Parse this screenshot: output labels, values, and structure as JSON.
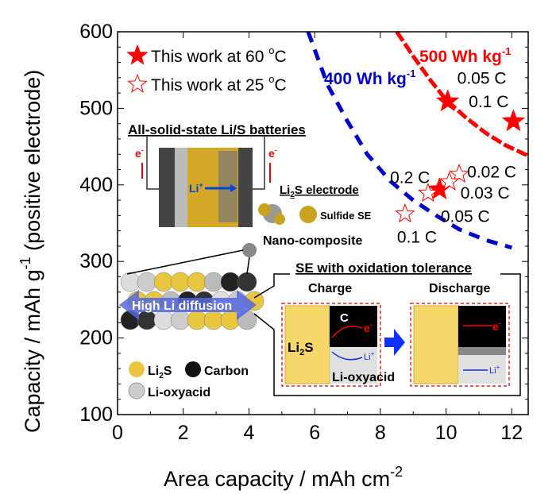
{
  "chart_data": {
    "type": "scatter",
    "xlabel": "Area capacity / mAh cm",
    "xlabel_sup": "-2",
    "ylabel": "Capacity / mAh g",
    "ylabel_sup": "-1",
    "ylabel_suffix": " (positive electrode)",
    "xlim": [
      0,
      12.5
    ],
    "ylim": [
      100,
      600
    ],
    "xticks": [
      0,
      2,
      4,
      6,
      8,
      10,
      12
    ],
    "yticks": [
      100,
      200,
      300,
      400,
      500,
      600
    ],
    "grid": false,
    "legend_placement": "top-left",
    "colors": {
      "star": "#ff0000",
      "line400": "#0000cc",
      "line500": "#ff0000"
    },
    "series": [
      {
        "name": "This work at 60 °C",
        "legend_main": "This work at 60 ",
        "legend_deg": "o",
        "legend_unit": "C",
        "marker": "filled-star",
        "points": [
          {
            "x": 10.05,
            "y": 509,
            "label": "0.05 C"
          },
          {
            "x": 12.05,
            "y": 483,
            "label": "0.1 C"
          },
          {
            "x": 9.8,
            "y": 394,
            "label": "0.2 C"
          }
        ]
      },
      {
        "name": "This work at 25 °C",
        "legend_main": "This work at 25 ",
        "legend_deg": "o",
        "legend_unit": "C",
        "marker": "open-star",
        "points": [
          {
            "x": 10.4,
            "y": 414,
            "label": "0.02 C"
          },
          {
            "x": 10.1,
            "y": 404,
            "label": "0.03 C"
          },
          {
            "x": 9.45,
            "y": 389,
            "label": "0.05 C"
          },
          {
            "x": 8.75,
            "y": 362,
            "label": "0.1 C"
          }
        ]
      }
    ],
    "reference_lines": [
      {
        "label": "400 Wh kg",
        "sup": "-1",
        "color": "#0000cc",
        "points": [
          [
            5.8,
            600
          ],
          [
            6.4,
            530
          ],
          [
            7.0,
            483
          ],
          [
            7.6,
            440
          ],
          [
            8.3,
            405
          ],
          [
            9.0,
            380
          ],
          [
            9.7,
            360
          ],
          [
            10.4,
            342
          ],
          [
            11.2,
            328
          ],
          [
            12.0,
            318
          ]
        ]
      },
      {
        "label": "500 Wh kg",
        "sup": "-1",
        "color": "#ff0000",
        "points": [
          [
            8.5,
            600
          ],
          [
            9.0,
            568
          ],
          [
            9.5,
            538
          ],
          [
            10.0,
            511
          ],
          [
            10.6,
            488
          ],
          [
            11.2,
            468
          ],
          [
            11.8,
            452
          ],
          [
            12.5,
            438
          ]
        ]
      }
    ]
  },
  "inset": {
    "title1": "All-solid-state Li/S batteries",
    "eminus": "e",
    "eminus_sup": "-",
    "li_plus": "Li",
    "plus": "+",
    "li2s_electrode_a": "Li",
    "li2s_electrode_sub": "2",
    "li2s_electrode_b": "S electrode",
    "sulfide_se": "Sulfide SE",
    "nano": "Nano-composite",
    "high_li": "High Li diffusion",
    "legend_li2s_a": "Li",
    "legend_li2s_sub": "2",
    "legend_li2s_b": "S",
    "legend_carbon": "Carbon",
    "legend_oxy": "Li-oxyacid",
    "title2": "SE with oxidation tolerance",
    "charge": "Charge",
    "discharge": "Discharge",
    "c": "C",
    "li_oxyacid": "Li-oxyacid"
  }
}
